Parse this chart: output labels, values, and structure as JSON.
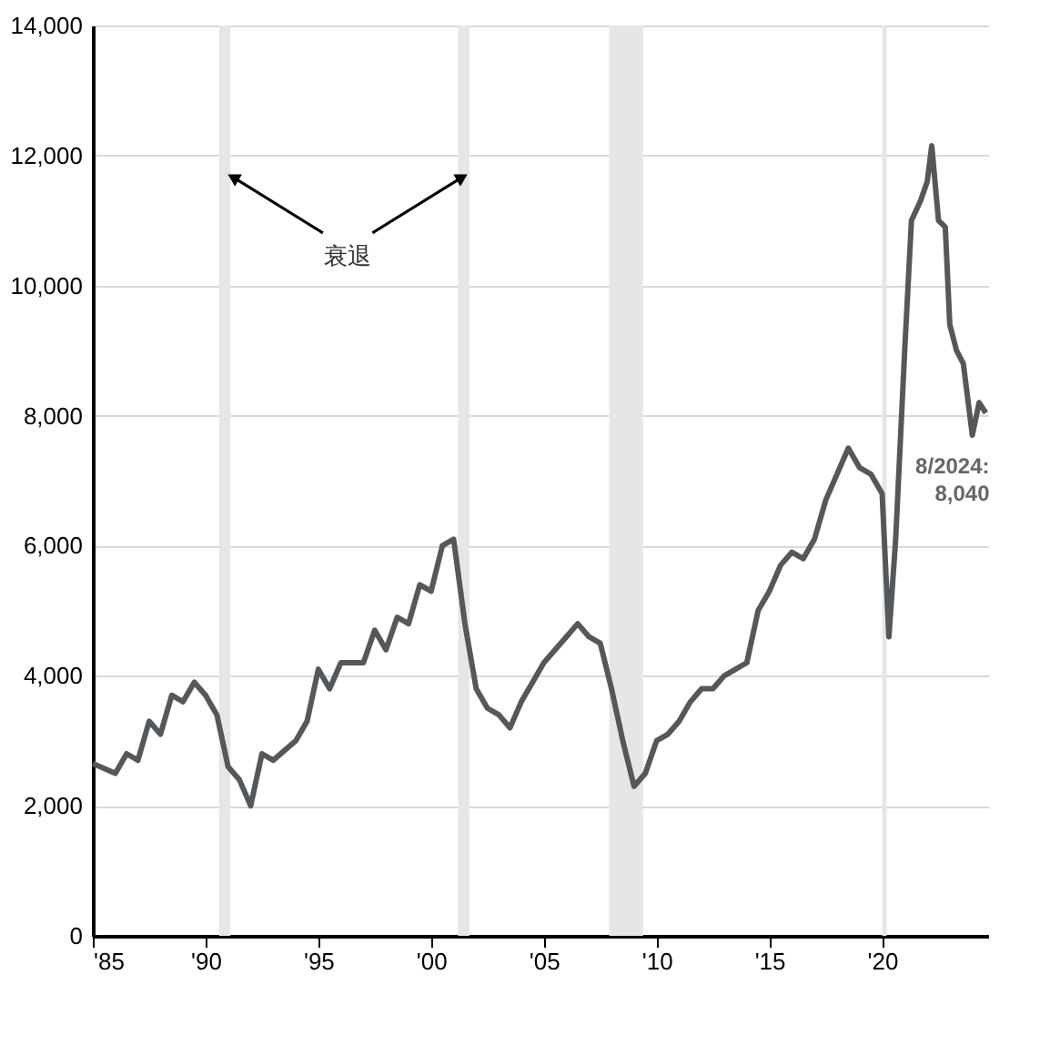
{
  "chart_data": {
    "type": "line",
    "x": [
      1985,
      1986,
      1986.5,
      1987,
      1987.5,
      1988,
      1988.5,
      1989,
      1989.5,
      1990,
      1990.5,
      1991,
      1991.5,
      1992,
      1992.5,
      1993,
      1994,
      1994.5,
      1995,
      1995.5,
      1996,
      1997,
      1997.5,
      1998,
      1998.5,
      1999,
      1999.5,
      2000,
      2000.5,
      2001,
      2001.5,
      2002,
      2002.5,
      2003,
      2003.5,
      2004,
      2004.5,
      2005,
      2005.5,
      2006,
      2006.5,
      2007,
      2007.5,
      2008,
      2008.5,
      2009,
      2009.5,
      2010,
      2010.5,
      2011,
      2011.5,
      2012,
      2012.5,
      2013,
      2013.5,
      2014,
      2014.5,
      2015,
      2015.5,
      2016,
      2016.5,
      2017,
      2017.5,
      2018,
      2018.5,
      2019,
      2019.5,
      2020,
      2020.3,
      2020.6,
      2021,
      2021.3,
      2021.7,
      2022,
      2022.2,
      2022.5,
      2022.8,
      2023,
      2023.3,
      2023.6,
      2024,
      2024.3,
      2024.6
    ],
    "series": [
      {
        "color": "#55585b",
        "values": [
          2650,
          2500,
          2800,
          2700,
          3300,
          3100,
          3700,
          3600,
          3900,
          3700,
          3400,
          2600,
          2400,
          2000,
          2800,
          2700,
          3000,
          3300,
          4100,
          3800,
          4200,
          4200,
          4700,
          4400,
          4900,
          4800,
          5400,
          5300,
          6000,
          6100,
          4800,
          3800,
          3500,
          3400,
          3200,
          3600,
          3900,
          4200,
          4400,
          4600,
          4800,
          4600,
          4500,
          3800,
          3000,
          2300,
          2500,
          3000,
          3100,
          3300,
          3600,
          3800,
          3800,
          4000,
          4100,
          4200,
          5000,
          5300,
          5700,
          5900,
          5800,
          6100,
          6700,
          7100,
          7500,
          7200,
          7100,
          6800,
          4600,
          6100,
          9000,
          11000,
          11300,
          11600,
          12150,
          11000,
          10900,
          9400,
          9000,
          8800,
          7700,
          8200,
          8040
        ]
      }
    ],
    "xlim": [
      1985,
      2024.7
    ],
    "xticks": [
      {
        "value": 1985,
        "label": "'85"
      },
      {
        "value": 1990,
        "label": "'90"
      },
      {
        "value": 1995,
        "label": "'95"
      },
      {
        "value": 2000,
        "label": "'00"
      },
      {
        "value": 2005,
        "label": "'05"
      },
      {
        "value": 2010,
        "label": "'10"
      },
      {
        "value": 2015,
        "label": "'15"
      },
      {
        "value": 2020,
        "label": "'20"
      }
    ],
    "ylim": [
      0,
      14000
    ],
    "yticks": [
      {
        "value": 0,
        "label": "0"
      },
      {
        "value": 2000,
        "label": "2,000"
      },
      {
        "value": 4000,
        "label": "4,000"
      },
      {
        "value": 6000,
        "label": "6,000"
      },
      {
        "value": 8000,
        "label": "8,000"
      },
      {
        "value": 10000,
        "label": "10,000"
      },
      {
        "value": 12000,
        "label": "12,000"
      },
      {
        "value": 14000,
        "label": "14,000"
      }
    ],
    "grid": "y",
    "marker": "none",
    "line_style": "solid",
    "bands": [
      {
        "axis": "x",
        "from": 1990.6,
        "to": 1991.1,
        "color": "#e6e6e6"
      },
      {
        "axis": "x",
        "from": 2001.2,
        "to": 2001.7,
        "color": "#e6e6e6"
      },
      {
        "axis": "x",
        "from": 2007.9,
        "to": 2009.4,
        "color": "#e6e6e6"
      },
      {
        "axis": "x",
        "from": 2020.0,
        "to": 2020.2,
        "color": "#e6e6e6"
      }
    ],
    "annotations": [
      {
        "text": "衰退",
        "x": 1991.3,
        "y": 11650
      },
      {
        "text": "8/2024:\n8,040",
        "x": 2024.6,
        "y": 8040
      }
    ]
  }
}
